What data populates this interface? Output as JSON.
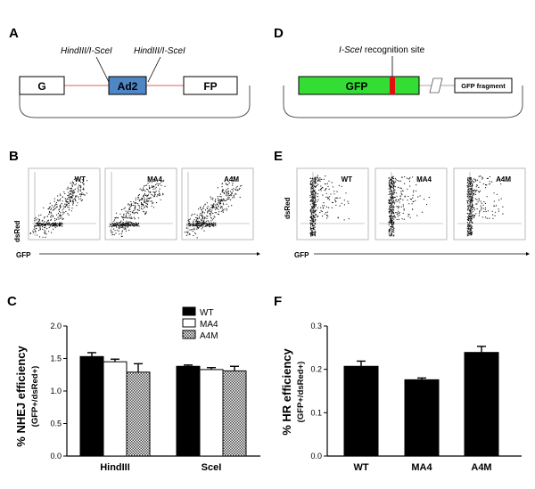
{
  "colors": {
    "ad2_fill": "#4f86c6",
    "gfp_fill": "#33dd33",
    "site_red": "#e01010",
    "link_red": "#e06060",
    "bar_black": "#000000",
    "bar_white": "#ffffff",
    "pattern": "#444444"
  },
  "panel_labels": [
    "A",
    "B",
    "C",
    "D",
    "E",
    "F"
  ],
  "panel_a": {
    "site_left": "HindIII/I-SceI",
    "site_right": "HindIII/I-SceI",
    "box_left": "G",
    "box_mid": "Ad2",
    "box_right": "FP"
  },
  "panel_d": {
    "site_label_italic": "I-SceI",
    "site_label_rest": " recognition site",
    "gfp_box": "GFP",
    "fragment_box": "GFP fragment"
  },
  "panel_b": {
    "plots": [
      "WT",
      "MA4",
      "A4M"
    ],
    "xlabel": "GFP",
    "ylabel": "dsRed"
  },
  "panel_e": {
    "plots": [
      "WT",
      "MA4",
      "A4M"
    ],
    "xlabel": "GFP",
    "ylabel": "dsRed"
  },
  "chart_data": [
    {
      "type": "bar",
      "panel": "C",
      "title": "",
      "ylabel": "% NHEJ efficiency",
      "ylabel_sub": "(GFP+/dsRed+)",
      "categories": [
        "HindIII",
        "SceI"
      ],
      "series": [
        {
          "name": "WT",
          "values": [
            1.53,
            1.38
          ],
          "errors": [
            0.06,
            0.02
          ]
        },
        {
          "name": "MA4",
          "values": [
            1.45,
            1.33
          ],
          "errors": [
            0.04,
            0.03
          ]
        },
        {
          "name": "A4M",
          "values": [
            1.29,
            1.31
          ],
          "errors": [
            0.13,
            0.07
          ]
        }
      ],
      "yticks": [
        "0.0",
        "0.5",
        "1.0",
        "1.5",
        "2.0"
      ],
      "ylim": [
        0,
        2.0
      ],
      "legend": "top-center"
    },
    {
      "type": "bar",
      "panel": "F",
      "title": "",
      "ylabel": "% HR efficiency",
      "ylabel_sub": "(GFP+/dsRed+)",
      "categories": [
        "WT",
        "MA4",
        "A4M"
      ],
      "values": [
        0.207,
        0.176,
        0.239
      ],
      "errors": [
        0.012,
        0.004,
        0.014
      ],
      "yticks": [
        "0.0",
        "0.1",
        "0.2",
        "0.3"
      ],
      "ylim": [
        0,
        0.3
      ]
    }
  ]
}
